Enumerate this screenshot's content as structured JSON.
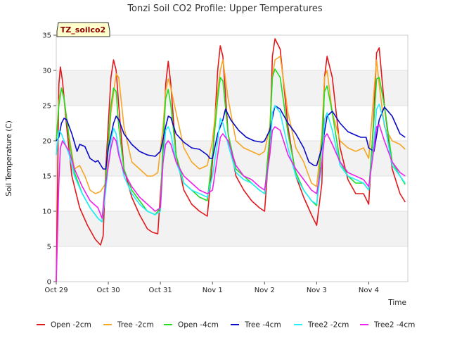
{
  "chart_data": {
    "type": "line",
    "title": "Tonzi Soil CO2 Profile: Upper Temperatures",
    "xlabel": "Time",
    "ylabel": "Soil Temperature (C)",
    "badge": "TZ_soilco2",
    "ylim": [
      0,
      35
    ],
    "yticks": [
      0,
      5,
      10,
      15,
      20,
      25,
      30,
      35
    ],
    "xlim": [
      0,
      6.75
    ],
    "xticks": [
      {
        "value": 0,
        "label": "Oct 29"
      },
      {
        "value": 1,
        "label": "Oct 30"
      },
      {
        "value": 2,
        "label": "Oct 31"
      },
      {
        "value": 3,
        "label": "Nov 1"
      },
      {
        "value": 4,
        "label": "Nov 2"
      },
      {
        "value": 5,
        "label": "Nov 3"
      },
      {
        "value": 6,
        "label": "Nov 4"
      }
    ],
    "grid_bands": true,
    "legend_position": "bottom",
    "series": [
      {
        "name": "Open -2cm",
        "color": "#e0191c",
        "x": [
          0,
          0.05,
          0.08,
          0.12,
          0.2,
          0.3,
          0.45,
          0.6,
          0.75,
          0.85,
          0.9,
          0.95,
          1.05,
          1.1,
          1.15,
          1.2,
          1.3,
          1.45,
          1.6,
          1.75,
          1.85,
          1.95,
          2.05,
          2.1,
          2.15,
          2.2,
          2.3,
          2.45,
          2.6,
          2.75,
          2.9,
          3.0,
          3.1,
          3.15,
          3.2,
          3.3,
          3.45,
          3.6,
          3.75,
          3.9,
          4.0,
          4.1,
          4.15,
          4.2,
          4.3,
          4.45,
          4.6,
          4.75,
          4.9,
          5.0,
          5.1,
          5.15,
          5.2,
          5.3,
          5.45,
          5.6,
          5.75,
          5.9,
          6.0,
          6.1,
          6.15,
          6.2,
          6.3,
          6.45,
          6.6,
          6.7
        ],
        "y": [
          0,
          28,
          30.5,
          28.5,
          22,
          15,
          10.5,
          8,
          6,
          5.2,
          6.5,
          16,
          29,
          31.5,
          30,
          25,
          16,
          12,
          9.5,
          7.5,
          7,
          6.8,
          18,
          28,
          31.3,
          28,
          18,
          13,
          11,
          10,
          9.3,
          17,
          30,
          33.5,
          32,
          21,
          15,
          13,
          11.5,
          10.5,
          10,
          20,
          32,
          34.5,
          33,
          22,
          15,
          12,
          9.5,
          8,
          14,
          29,
          32,
          29,
          19,
          14.5,
          12.5,
          12.5,
          11,
          24,
          32.5,
          33.2,
          25,
          16,
          12.5,
          11.3
        ]
      },
      {
        "name": "Tree -2cm",
        "color": "#f5a623",
        "x": [
          0,
          0.05,
          0.1,
          0.15,
          0.25,
          0.35,
          0.45,
          0.55,
          0.65,
          0.75,
          0.85,
          0.95,
          1.05,
          1.15,
          1.2,
          1.3,
          1.45,
          1.6,
          1.75,
          1.85,
          1.95,
          2.05,
          2.1,
          2.15,
          2.2,
          2.3,
          2.45,
          2.6,
          2.75,
          2.9,
          3.0,
          3.1,
          3.15,
          3.2,
          3.3,
          3.45,
          3.6,
          3.75,
          3.9,
          4.0,
          4.1,
          4.15,
          4.2,
          4.3,
          4.45,
          4.6,
          4.75,
          4.9,
          5.0,
          5.1,
          5.15,
          5.2,
          5.3,
          5.45,
          5.6,
          5.75,
          5.9,
          6.0,
          6.1,
          6.15,
          6.2,
          6.3,
          6.45,
          6.6,
          6.7
        ],
        "y": [
          20,
          25.5,
          27.5,
          26,
          20.5,
          16,
          16.5,
          15,
          13,
          12.5,
          12.8,
          14,
          24,
          29.5,
          29,
          22,
          17,
          16,
          15,
          15,
          15.5,
          22,
          27,
          28.8,
          27.5,
          24,
          19,
          17,
          16,
          16.5,
          20,
          27,
          30,
          31.5,
          26,
          20,
          19,
          18.5,
          18,
          18.5,
          22,
          29,
          31.5,
          32,
          24,
          19,
          17,
          14,
          13.5,
          21,
          29,
          30,
          24,
          20,
          19,
          18.5,
          19,
          17.5,
          27,
          31.5,
          28,
          22,
          20,
          19.5,
          18.8
        ]
      },
      {
        "name": "Open -4cm",
        "color": "#22dd22",
        "x": [
          0,
          0.05,
          0.1,
          0.15,
          0.25,
          0.35,
          0.5,
          0.65,
          0.8,
          0.88,
          0.95,
          1.05,
          1.1,
          1.15,
          1.2,
          1.3,
          1.45,
          1.6,
          1.75,
          1.9,
          2.0,
          2.05,
          2.1,
          2.15,
          2.2,
          2.3,
          2.45,
          2.6,
          2.75,
          2.9,
          3.0,
          3.1,
          3.15,
          3.2,
          3.3,
          3.45,
          3.6,
          3.75,
          3.9,
          4.0,
          4.1,
          4.15,
          4.2,
          4.3,
          4.45,
          4.6,
          4.75,
          4.9,
          5.0,
          5.1,
          5.15,
          5.2,
          5.3,
          5.45,
          5.6,
          5.75,
          5.9,
          6.0,
          6.1,
          6.15,
          6.2,
          6.3,
          6.45,
          6.6,
          6.7
        ],
        "y": [
          20,
          25,
          27.5,
          26,
          20,
          15.5,
          12.5,
          10.5,
          9,
          8.5,
          15,
          25,
          27.5,
          27,
          22,
          16,
          13,
          11.5,
          10,
          9.5,
          10.5,
          20,
          26,
          27.3,
          25,
          18,
          14,
          13,
          12,
          11.5,
          18,
          26,
          29,
          28.5,
          21,
          16,
          15,
          14,
          13,
          12.5,
          21,
          29,
          30.2,
          29,
          21,
          15.5,
          13,
          11.5,
          10.8,
          20,
          27,
          27.8,
          24,
          17,
          15,
          14,
          14,
          13,
          23,
          28.8,
          29,
          25,
          17,
          15,
          13.8
        ]
      },
      {
        "name": "Tree -4cm",
        "color": "#0a0ac8",
        "x": [
          0,
          0.05,
          0.1,
          0.15,
          0.2,
          0.3,
          0.4,
          0.45,
          0.55,
          0.65,
          0.75,
          0.8,
          0.9,
          0.95,
          1.0,
          1.1,
          1.15,
          1.2,
          1.3,
          1.45,
          1.6,
          1.75,
          1.9,
          2.0,
          2.1,
          2.15,
          2.2,
          2.3,
          2.45,
          2.6,
          2.75,
          2.9,
          2.95,
          3.0,
          3.1,
          3.2,
          3.25,
          3.35,
          3.5,
          3.65,
          3.8,
          3.95,
          4.0,
          4.1,
          4.2,
          4.3,
          4.45,
          4.6,
          4.75,
          4.85,
          4.95,
          5.0,
          5.1,
          5.2,
          5.3,
          5.45,
          5.6,
          5.75,
          5.85,
          5.95,
          6.0,
          6.1,
          6.2,
          6.3,
          6.45,
          6.6,
          6.7
        ],
        "y": [
          20,
          20.5,
          22.5,
          23.2,
          23,
          21,
          18.5,
          19.5,
          19.2,
          17.5,
          17,
          17.2,
          16,
          16,
          19,
          22.5,
          23.5,
          23,
          21,
          19.5,
          18.5,
          18,
          17.8,
          18.5,
          22,
          23.5,
          23.3,
          21,
          19.8,
          19,
          18.8,
          18,
          17.5,
          17.5,
          21,
          23,
          24.5,
          23,
          21.5,
          20.5,
          20,
          19.8,
          20,
          21.5,
          25,
          24.5,
          22.5,
          21,
          19,
          17,
          16.5,
          16.5,
          19,
          23.5,
          24.2,
          22.5,
          21.3,
          20.8,
          20.5,
          20.5,
          19,
          18.5,
          23,
          24.8,
          23.5,
          21,
          20.5
        ]
      },
      {
        "name": "Tree2 -2cm",
        "color": "#22eeff",
        "x": [
          0,
          0.05,
          0.1,
          0.15,
          0.25,
          0.35,
          0.5,
          0.65,
          0.8,
          0.88,
          0.95,
          1.05,
          1.1,
          1.15,
          1.2,
          1.3,
          1.45,
          1.6,
          1.75,
          1.9,
          2.0,
          2.05,
          2.1,
          2.15,
          2.2,
          2.3,
          2.45,
          2.6,
          2.75,
          2.9,
          3.0,
          3.1,
          3.15,
          3.2,
          3.3,
          3.45,
          3.6,
          3.75,
          3.9,
          4.0,
          4.1,
          4.15,
          4.2,
          4.3,
          4.45,
          4.6,
          4.75,
          4.9,
          5.0,
          5.1,
          5.15,
          5.2,
          5.3,
          5.45,
          5.6,
          5.75,
          5.9,
          6.0,
          6.1,
          6.15,
          6.2,
          6.3,
          6.45,
          6.6,
          6.7
        ],
        "y": [
          18,
          21.5,
          21,
          20,
          18,
          15,
          12.5,
          10.5,
          9,
          8.5,
          13,
          20,
          21.8,
          21,
          18.5,
          15,
          12.5,
          11,
          10,
          9.5,
          10,
          17,
          21.5,
          22,
          21,
          17,
          14,
          13,
          12.5,
          12,
          15,
          20,
          23.2,
          22.5,
          19.5,
          15.5,
          14.5,
          14,
          13,
          12.5,
          18,
          24,
          25,
          24,
          19,
          15,
          13,
          11.5,
          11,
          17,
          23,
          24,
          21.5,
          16.5,
          15,
          14.5,
          14,
          13,
          20,
          24.5,
          25.2,
          22.5,
          16.5,
          15,
          14
        ]
      },
      {
        "name": "Tree2 -4cm",
        "color": "#ee22ee",
        "x": [
          0,
          0.05,
          0.08,
          0.12,
          0.25,
          0.35,
          0.5,
          0.65,
          0.8,
          0.88,
          0.95,
          1.05,
          1.1,
          1.15,
          1.2,
          1.3,
          1.45,
          1.6,
          1.75,
          1.9,
          2.0,
          2.05,
          2.1,
          2.15,
          2.2,
          2.3,
          2.45,
          2.6,
          2.75,
          2.9,
          3.0,
          3.1,
          3.15,
          3.2,
          3.3,
          3.45,
          3.6,
          3.75,
          3.9,
          4.0,
          4.1,
          4.15,
          4.2,
          4.3,
          4.45,
          4.6,
          4.75,
          4.9,
          5.0,
          5.1,
          5.15,
          5.2,
          5.3,
          5.45,
          5.6,
          5.75,
          5.9,
          6.0,
          6.1,
          6.15,
          6.2,
          6.3,
          6.45,
          6.6,
          6.7
        ],
        "y": [
          0,
          14,
          19,
          20,
          18.5,
          16,
          13.5,
          11.5,
          10.5,
          9,
          14,
          19,
          20.5,
          20,
          18,
          15.5,
          13.5,
          12,
          11,
          10,
          10.5,
          17,
          19.5,
          20,
          19.5,
          17,
          15,
          14,
          13,
          12.5,
          13,
          18,
          20.5,
          21,
          20,
          16.5,
          15,
          14.5,
          13.5,
          13,
          18,
          21.5,
          22,
          21.5,
          18,
          16,
          14.5,
          13,
          12.5,
          17,
          20.5,
          21,
          19.5,
          17,
          15.5,
          15,
          14.5,
          13.5,
          19,
          22,
          22.3,
          20,
          17,
          15.5,
          15
        ]
      }
    ]
  }
}
